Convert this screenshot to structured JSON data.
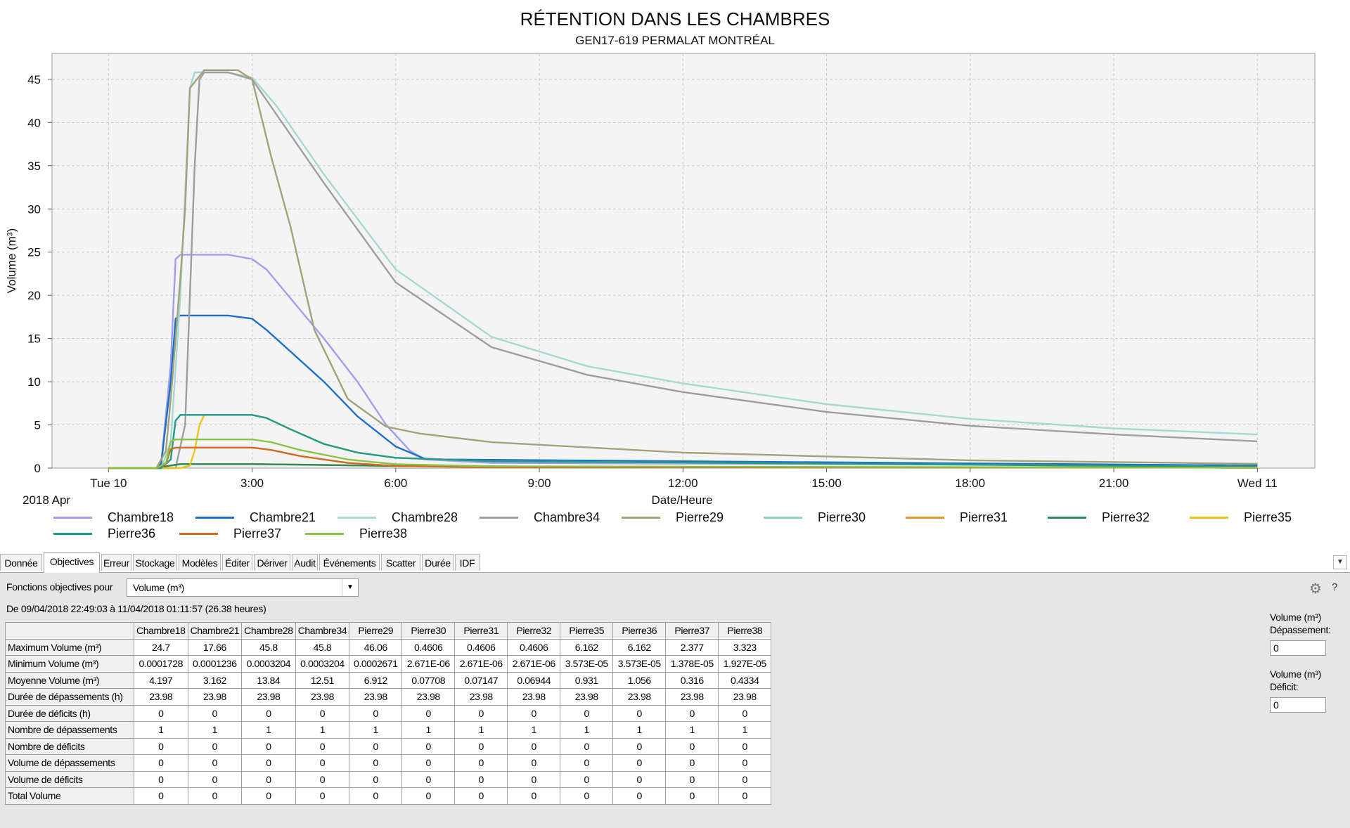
{
  "chart_data": {
    "type": "line",
    "title": "RÉTENTION DANS LES CHAMBRES",
    "subtitle": "GEN17-619 PERMALAT MONTRÉAL",
    "xlabel": "Date/Heure",
    "ylabel": "Volume (m³)",
    "x_unit": "hours",
    "x_ticks": [
      {
        "value": 0,
        "label": "Tue 10"
      },
      {
        "value": 3,
        "label": "3:00"
      },
      {
        "value": 6,
        "label": "6:00"
      },
      {
        "value": 9,
        "label": "9:00"
      },
      {
        "value": 12,
        "label": "12:00"
      },
      {
        "value": 15,
        "label": "15:00"
      },
      {
        "value": 18,
        "label": "18:00"
      },
      {
        "value": 21,
        "label": "21:00"
      },
      {
        "value": 24,
        "label": "Wed 11"
      }
    ],
    "x_sublabel": "2018 Apr",
    "xlim": [
      -1.18,
      25.2
    ],
    "ylim": [
      0,
      48
    ],
    "y_ticks": [
      0,
      5,
      10,
      15,
      20,
      25,
      30,
      35,
      40,
      45
    ],
    "grid": true,
    "series": [
      {
        "name": "Chambre18",
        "color": "#9f9fef",
        "x": [
          0,
          1.0,
          1.1,
          1.3,
          1.4,
          1.5,
          2.5,
          3.0,
          3.3,
          4.5,
          5.2,
          5.8,
          6.3,
          6.6,
          8,
          24
        ],
        "y": [
          0,
          0,
          0.5,
          12,
          24.2,
          24.7,
          24.7,
          24.2,
          23,
          15,
          10,
          5,
          2,
          1.0,
          0.6,
          0.3
        ]
      },
      {
        "name": "Chambre21",
        "color": "#1e6fc8",
        "x": [
          0,
          1.0,
          1.1,
          1.3,
          1.4,
          1.5,
          2.5,
          3.0,
          3.3,
          4.5,
          5.2,
          6.0,
          6.6,
          7,
          24
        ],
        "y": [
          0,
          0,
          0.5,
          10,
          17.3,
          17.66,
          17.66,
          17.3,
          16,
          10,
          6,
          2.5,
          1.1,
          1.0,
          0.3
        ]
      },
      {
        "name": "Chambre28",
        "color": "#a7d8d4",
        "x": [
          0,
          1.1,
          1.3,
          1.5,
          1.7,
          1.8,
          2.5,
          3.0,
          3.5,
          4.5,
          6,
          8,
          10,
          12,
          15,
          18,
          21,
          24
        ],
        "y": [
          0,
          0,
          3,
          20,
          44,
          45.8,
          45.8,
          45.2,
          42,
          34,
          23,
          15.2,
          11.8,
          9.8,
          7.4,
          5.7,
          4.6,
          3.9
        ]
      },
      {
        "name": "Chambre34",
        "color": "#9e9e9e",
        "x": [
          0,
          1.4,
          1.6,
          1.8,
          1.9,
          2.0,
          2.5,
          3.0,
          3.5,
          4.5,
          6,
          8,
          10,
          12,
          15,
          18,
          21,
          24
        ],
        "y": [
          0,
          0,
          5,
          35,
          45,
          45.8,
          45.8,
          45,
          41,
          33,
          21.5,
          14,
          10.8,
          8.8,
          6.5,
          4.9,
          3.9,
          3.1
        ]
      },
      {
        "name": "Pierre29",
        "color": "#a3a27a",
        "x": [
          0,
          1.0,
          1.2,
          1.3,
          1.4,
          1.5,
          1.6,
          1.7,
          2.0,
          2.7,
          3.0,
          3.4,
          3.8,
          4.3,
          5,
          5.8,
          6.5,
          8,
          12,
          18,
          24
        ],
        "y": [
          0,
          0,
          2,
          8,
          15,
          22,
          30,
          44,
          46.06,
          46.06,
          45,
          36,
          28,
          16,
          8,
          4.8,
          4.0,
          3.0,
          1.8,
          0.9,
          0.5
        ]
      },
      {
        "name": "Pierre30",
        "color": "#8fd0c8",
        "x": [
          0,
          1.0,
          1.3,
          1.5,
          3.0,
          4,
          6,
          10,
          24
        ],
        "y": [
          0,
          0,
          0.3,
          0.46,
          0.46,
          0.4,
          0.25,
          0.15,
          0.05
        ]
      },
      {
        "name": "Pierre31",
        "color": "#e8952f",
        "x": [
          0,
          1.0,
          1.3,
          1.5,
          3.0,
          4,
          6,
          10,
          24
        ],
        "y": [
          0,
          0,
          0.3,
          0.46,
          0.46,
          0.4,
          0.25,
          0.15,
          0.05
        ]
      },
      {
        "name": "Pierre32",
        "color": "#2e8b57",
        "x": [
          0,
          1.0,
          1.3,
          1.5,
          3.0,
          4,
          6,
          10,
          24
        ],
        "y": [
          0,
          0,
          0.3,
          0.46,
          0.46,
          0.4,
          0.25,
          0.15,
          0.05
        ]
      },
      {
        "name": "Pierre35",
        "color": "#f0c419",
        "x": [
          0,
          1.5,
          1.7,
          1.8,
          1.9,
          2.0,
          3.0,
          3.3,
          3.8,
          4.5,
          5.2,
          6,
          8,
          24
        ],
        "y": [
          0,
          0,
          0.3,
          2,
          5,
          6.162,
          6.162,
          5.8,
          4.5,
          2.8,
          1.8,
          1.2,
          0.8,
          0.15
        ]
      },
      {
        "name": "Pierre36",
        "color": "#1f9b8c",
        "x": [
          0,
          1.1,
          1.3,
          1.4,
          1.5,
          3.0,
          3.3,
          3.8,
          4.5,
          5.2,
          6,
          8,
          24
        ],
        "y": [
          0,
          0,
          1,
          5.5,
          6.162,
          6.162,
          5.8,
          4.5,
          2.8,
          1.8,
          1.2,
          0.8,
          0.15
        ]
      },
      {
        "name": "Pierre37",
        "color": "#d2691e",
        "x": [
          0,
          1.0,
          1.2,
          1.3,
          1.4,
          3.0,
          3.4,
          4,
          5,
          6,
          8,
          24
        ],
        "y": [
          0,
          0,
          0.5,
          2.2,
          2.377,
          2.377,
          2.1,
          1.4,
          0.6,
          0.25,
          0.1,
          0.05
        ]
      },
      {
        "name": "Pierre38",
        "color": "#8bc34a",
        "x": [
          0,
          1.0,
          1.2,
          1.3,
          1.4,
          3.0,
          3.4,
          4,
          5,
          6,
          8,
          24
        ],
        "y": [
          0,
          0,
          0.6,
          3.1,
          3.323,
          3.323,
          3.0,
          2.1,
          1.0,
          0.45,
          0.2,
          0.05
        ]
      }
    ]
  },
  "tabs": [
    "Donnée",
    "Objectives",
    "Erreur",
    "Stockage",
    "Modèles",
    "Éditer",
    "Dériver",
    "Audit",
    "Événements",
    "Scatter",
    "Durée",
    "IDF"
  ],
  "active_tab": "Objectives",
  "panel": {
    "func_label": "Fonctions objectives pour",
    "func_value": "Volume (m³)",
    "date_range": "De 09/04/2018 22:49:03 à 11/04/2018 01:11:57 (26.38 heures)",
    "side": {
      "depassement_label_1": "Volume (m³)",
      "depassement_label_2": "Dépassement:",
      "depassement_value": "0",
      "deficit_label_1": "Volume (m³)",
      "deficit_label_2": "Déficit:",
      "deficit_value": "0"
    },
    "help": "?"
  },
  "table": {
    "columns": [
      "Chambre18",
      "Chambre21",
      "Chambre28",
      "Chambre34",
      "Pierre29",
      "Pierre30",
      "Pierre31",
      "Pierre32",
      "Pierre35",
      "Pierre36",
      "Pierre37",
      "Pierre38"
    ],
    "rows": [
      {
        "label": "Maximum Volume (m³)",
        "values": [
          "24.7",
          "17.66",
          "45.8",
          "45.8",
          "46.06",
          "0.4606",
          "0.4606",
          "0.4606",
          "6.162",
          "6.162",
          "2.377",
          "3.323"
        ]
      },
      {
        "label": "Minimum Volume (m³)",
        "values": [
          "0.0001728",
          "0.0001236",
          "0.0003204",
          "0.0003204",
          "0.0002671",
          "2.671E-06",
          "2.671E-06",
          "2.671E-06",
          "3.573E-05",
          "3.573E-05",
          "1.378E-05",
          "1.927E-05"
        ]
      },
      {
        "label": "Moyenne Volume (m³)",
        "values": [
          "4.197",
          "3.162",
          "13.84",
          "12.51",
          "6.912",
          "0.07708",
          "0.07147",
          "0.06944",
          "0.931",
          "1.056",
          "0.316",
          "0.4334"
        ]
      },
      {
        "label": "Durée de dépassements (h)",
        "values": [
          "23.98",
          "23.98",
          "23.98",
          "23.98",
          "23.98",
          "23.98",
          "23.98",
          "23.98",
          "23.98",
          "23.98",
          "23.98",
          "23.98"
        ]
      },
      {
        "label": "Durée de déficits (h)",
        "values": [
          "0",
          "0",
          "0",
          "0",
          "0",
          "0",
          "0",
          "0",
          "0",
          "0",
          "0",
          "0"
        ]
      },
      {
        "label": "Nombre de dépassements",
        "values": [
          "1",
          "1",
          "1",
          "1",
          "1",
          "1",
          "1",
          "1",
          "1",
          "1",
          "1",
          "1"
        ]
      },
      {
        "label": "Nombre de déficits",
        "values": [
          "0",
          "0",
          "0",
          "0",
          "0",
          "0",
          "0",
          "0",
          "0",
          "0",
          "0",
          "0"
        ]
      },
      {
        "label": "Volume de dépassements",
        "values": [
          "0",
          "0",
          "0",
          "0",
          "0",
          "0",
          "0",
          "0",
          "0",
          "0",
          "0",
          "0"
        ]
      },
      {
        "label": "Volume de déficits",
        "values": [
          "0",
          "0",
          "0",
          "0",
          "0",
          "0",
          "0",
          "0",
          "0",
          "0",
          "0",
          "0"
        ]
      },
      {
        "label": "Total Volume",
        "values": [
          "0",
          "0",
          "0",
          "0",
          "0",
          "0",
          "0",
          "0",
          "0",
          "0",
          "0",
          "0"
        ]
      }
    ]
  }
}
